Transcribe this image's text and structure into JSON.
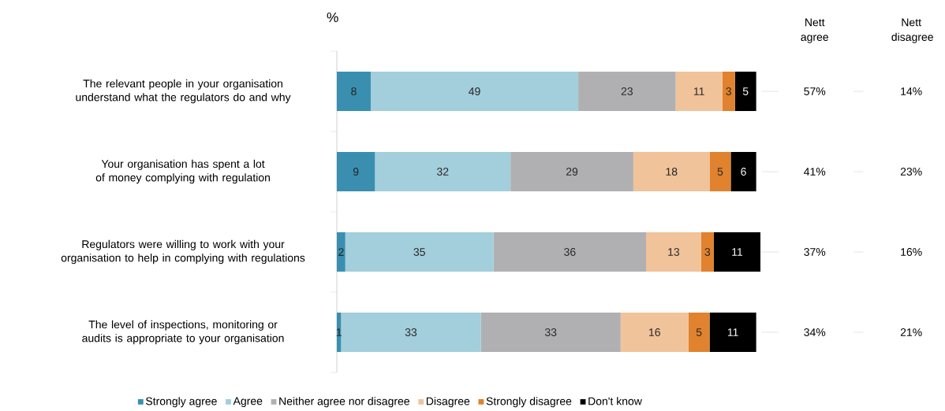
{
  "chart_data": {
    "type": "bar",
    "orientation": "horizontal",
    "stacked": true,
    "xlabel": "%",
    "categories": [
      "The relevant people in your organisation understand what the regulators do and why",
      "Your organisation has spent a lot of money complying with regulation",
      "Regulators were willing to work with your organisation to help in complying with regulations",
      "The level of inspections, monitoring or audits is appropriate to your organisation"
    ],
    "series": [
      {
        "name": "Strongly agree",
        "color": "#3a8fb0",
        "values": [
          8,
          9,
          2,
          1
        ]
      },
      {
        "name": "Agree",
        "color": "#a3cedb",
        "values": [
          49,
          32,
          35,
          33
        ]
      },
      {
        "name": "Neither agree nor disagree",
        "color": "#b0b0b2",
        "values": [
          23,
          29,
          36,
          33
        ]
      },
      {
        "name": "Disagree",
        "color": "#f0c39a",
        "values": [
          11,
          18,
          13,
          16
        ]
      },
      {
        "name": "Strongly disagree",
        "color": "#e0822e",
        "values": [
          3,
          5,
          3,
          5
        ]
      },
      {
        "name": "Don't know",
        "color": "#000000",
        "values": [
          5,
          6,
          11,
          11
        ]
      }
    ],
    "xlim": [
      0,
      100
    ],
    "tick_labels": "y",
    "data_labels": true,
    "legend": "bottom",
    "annotations": [
      "Nett agree",
      "Nett disagree",
      "57%",
      "14%",
      "41%",
      "23%",
      "37%",
      "16%",
      "34%",
      "21%"
    ]
  }
}
